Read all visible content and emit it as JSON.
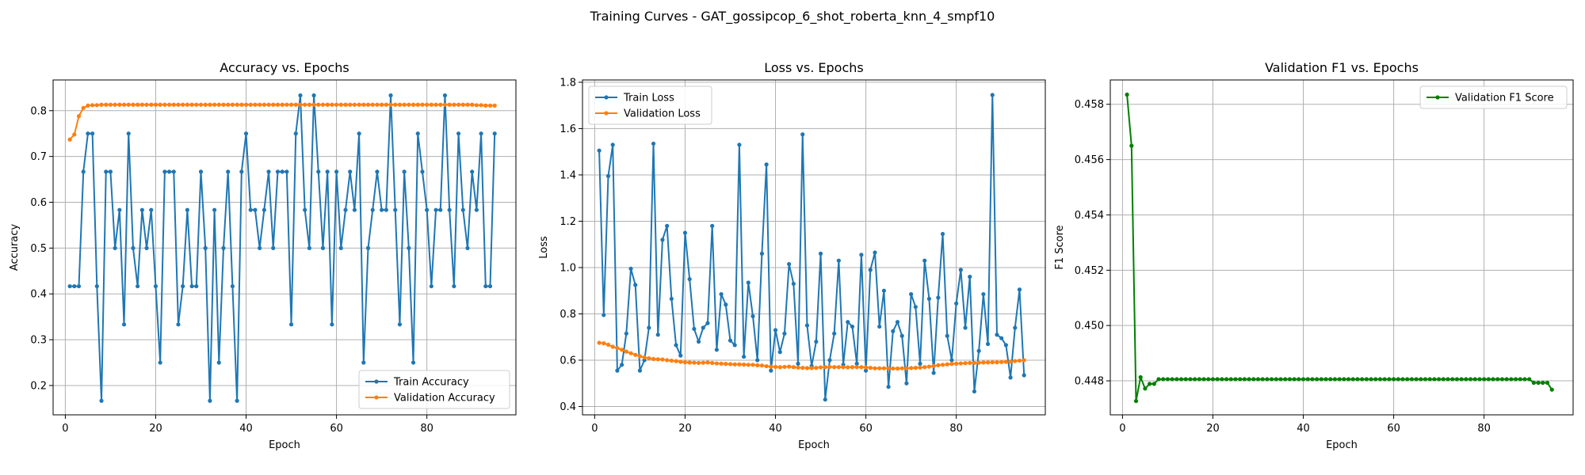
{
  "suptitle": "Training Curves - GAT_gossipcop_6_shot_roberta_knn_4_smpf10",
  "colors": {
    "blue": "#1f77b4",
    "orange": "#ff7f0e",
    "green": "#008000",
    "grid": "#b0b0b0"
  },
  "chart_data": [
    {
      "type": "line",
      "title": "Accuracy vs. Epochs",
      "xlabel": "Epoch",
      "ylabel": "Accuracy",
      "xlim": [
        -2.7,
        99.7
      ],
      "ylim": [
        0.136,
        0.867
      ],
      "xticks": [
        0,
        20,
        40,
        60,
        80
      ],
      "yticks": [
        0.2,
        0.3,
        0.4,
        0.5,
        0.6,
        0.7,
        0.8
      ],
      "grid": true,
      "legend": "lower right",
      "series": [
        {
          "name": "Train Accuracy",
          "color": "#1f77b4",
          "values": [
            0.4167,
            0.4167,
            0.4167,
            0.6667,
            0.75,
            0.75,
            0.4167,
            0.1667,
            0.6667,
            0.6667,
            0.5,
            0.5833,
            0.3333,
            0.75,
            0.5,
            0.4167,
            0.5833,
            0.5,
            0.5833,
            0.4167,
            0.25,
            0.6667,
            0.6667,
            0.6667,
            0.3333,
            0.4167,
            0.5833,
            0.4167,
            0.4167,
            0.6667,
            0.5,
            0.1667,
            0.5833,
            0.25,
            0.5,
            0.6667,
            0.4167,
            0.1667,
            0.6667,
            0.75,
            0.5833,
            0.5833,
            0.5,
            0.5833,
            0.6667,
            0.5,
            0.6667,
            0.6667,
            0.6667,
            0.3333,
            0.75,
            0.8333,
            0.5833,
            0.5,
            0.8333,
            0.6667,
            0.5,
            0.6667,
            0.3333,
            0.6667,
            0.5,
            0.5833,
            0.6667,
            0.5833,
            0.75,
            0.25,
            0.5,
            0.5833,
            0.6667,
            0.5833,
            0.5833,
            0.8333,
            0.5833,
            0.3333,
            0.6667,
            0.5,
            0.25,
            0.75,
            0.6667,
            0.5833,
            0.4167,
            0.5833,
            0.5833,
            0.8333,
            0.5833,
            0.4167,
            0.75,
            0.5833,
            0.5,
            0.6667,
            0.5833,
            0.75,
            0.4167,
            0.4167,
            0.75
          ]
        },
        {
          "name": "Validation Accuracy",
          "color": "#ff7f0e",
          "values": [
            0.737,
            0.748,
            0.788,
            0.806,
            0.811,
            0.812,
            0.812,
            0.813,
            0.813,
            0.813,
            0.813,
            0.813,
            0.813,
            0.813,
            0.813,
            0.813,
            0.813,
            0.813,
            0.813,
            0.813,
            0.813,
            0.813,
            0.813,
            0.813,
            0.813,
            0.813,
            0.813,
            0.813,
            0.813,
            0.813,
            0.813,
            0.813,
            0.813,
            0.813,
            0.813,
            0.813,
            0.813,
            0.813,
            0.813,
            0.813,
            0.813,
            0.813,
            0.813,
            0.813,
            0.813,
            0.813,
            0.813,
            0.813,
            0.813,
            0.813,
            0.813,
            0.813,
            0.813,
            0.813,
            0.813,
            0.813,
            0.813,
            0.813,
            0.813,
            0.813,
            0.813,
            0.813,
            0.813,
            0.813,
            0.813,
            0.813,
            0.813,
            0.813,
            0.813,
            0.813,
            0.813,
            0.813,
            0.813,
            0.813,
            0.813,
            0.813,
            0.813,
            0.813,
            0.813,
            0.813,
            0.813,
            0.813,
            0.813,
            0.813,
            0.813,
            0.813,
            0.813,
            0.813,
            0.813,
            0.813,
            0.812,
            0.812,
            0.811,
            0.811,
            0.811
          ]
        }
      ]
    },
    {
      "type": "line",
      "title": "Loss vs. Epochs",
      "xlabel": "Epoch",
      "ylabel": "Loss",
      "xlim": [
        -2.7,
        99.7
      ],
      "ylim": [
        0.364,
        1.81
      ],
      "xticks": [
        0,
        20,
        40,
        60,
        80
      ],
      "yticks": [
        0.4,
        0.6,
        0.8,
        1.0,
        1.2,
        1.4,
        1.6,
        1.8
      ],
      "grid": true,
      "legend": "upper left",
      "series": [
        {
          "name": "Train Loss",
          "color": "#1f77b4",
          "values": [
            1.505,
            0.795,
            1.395,
            1.53,
            0.555,
            0.58,
            0.715,
            0.995,
            0.925,
            0.555,
            0.6,
            0.74,
            1.535,
            0.71,
            1.12,
            1.18,
            0.865,
            0.665,
            0.62,
            1.15,
            0.95,
            0.735,
            0.68,
            0.74,
            0.76,
            1.18,
            0.645,
            0.885,
            0.84,
            0.685,
            0.665,
            1.53,
            0.615,
            0.935,
            0.79,
            0.6,
            1.06,
            1.445,
            0.555,
            0.73,
            0.635,
            0.715,
            1.015,
            0.93,
            0.585,
            1.575,
            0.75,
            0.575,
            0.68,
            1.06,
            0.43,
            0.6,
            0.715,
            1.03,
            0.58,
            0.765,
            0.745,
            0.585,
            1.055,
            0.555,
            0.99,
            1.065,
            0.745,
            0.9,
            0.485,
            0.725,
            0.765,
            0.705,
            0.5,
            0.885,
            0.83,
            0.585,
            1.03,
            0.865,
            0.545,
            0.87,
            1.145,
            0.705,
            0.6,
            0.845,
            0.99,
            0.74,
            0.96,
            0.465,
            0.64,
            0.885,
            0.67,
            1.745,
            0.71,
            0.695,
            0.665,
            0.525,
            0.74,
            0.905,
            0.535
          ]
        },
        {
          "name": "Validation Loss",
          "color": "#ff7f0e",
          "values": [
            0.675,
            0.673,
            0.667,
            0.658,
            0.652,
            0.645,
            0.637,
            0.63,
            0.623,
            0.617,
            0.612,
            0.608,
            0.605,
            0.604,
            0.603,
            0.6,
            0.598,
            0.596,
            0.593,
            0.591,
            0.59,
            0.589,
            0.588,
            0.589,
            0.59,
            0.588,
            0.586,
            0.585,
            0.584,
            0.583,
            0.582,
            0.582,
            0.581,
            0.58,
            0.58,
            0.578,
            0.577,
            0.574,
            0.572,
            0.571,
            0.57,
            0.571,
            0.572,
            0.57,
            0.568,
            0.567,
            0.566,
            0.566,
            0.567,
            0.569,
            0.57,
            0.571,
            0.57,
            0.57,
            0.57,
            0.569,
            0.57,
            0.57,
            0.57,
            0.569,
            0.567,
            0.565,
            0.565,
            0.565,
            0.565,
            0.564,
            0.564,
            0.565,
            0.565,
            0.566,
            0.567,
            0.568,
            0.57,
            0.572,
            0.575,
            0.578,
            0.58,
            0.582,
            0.584,
            0.585,
            0.586,
            0.587,
            0.588,
            0.588,
            0.589,
            0.59,
            0.59,
            0.591,
            0.591,
            0.592,
            0.593,
            0.594,
            0.596,
            0.598,
            0.6
          ]
        }
      ]
    },
    {
      "type": "line",
      "title": "Validation F1 vs. Epochs",
      "xlabel": "Epoch",
      "ylabel": "F1 Score",
      "xlim": [
        -2.7,
        99.7
      ],
      "ylim": [
        0.44677,
        0.45888
      ],
      "xticks": [
        0,
        20,
        40,
        60,
        80
      ],
      "yticks": [
        0.448,
        0.45,
        0.452,
        0.454,
        0.456,
        0.458
      ],
      "yformat": 3,
      "grid": true,
      "legend": "upper right",
      "series": [
        {
          "name": "Validation F1 Score",
          "color": "#008000",
          "values": [
            0.45835,
            0.4565,
            0.44727,
            0.44813,
            0.44772,
            0.44789,
            0.44789,
            0.44806,
            0.44806,
            0.44806,
            0.44806,
            0.44806,
            0.44806,
            0.44806,
            0.44806,
            0.44806,
            0.44806,
            0.44806,
            0.44806,
            0.44806,
            0.44806,
            0.44806,
            0.44806,
            0.44806,
            0.44806,
            0.44806,
            0.44806,
            0.44806,
            0.44806,
            0.44806,
            0.44806,
            0.44806,
            0.44806,
            0.44806,
            0.44806,
            0.44806,
            0.44806,
            0.44806,
            0.44806,
            0.44806,
            0.44806,
            0.44806,
            0.44806,
            0.44806,
            0.44806,
            0.44806,
            0.44806,
            0.44806,
            0.44806,
            0.44806,
            0.44806,
            0.44806,
            0.44806,
            0.44806,
            0.44806,
            0.44806,
            0.44806,
            0.44806,
            0.44806,
            0.44806,
            0.44806,
            0.44806,
            0.44806,
            0.44806,
            0.44806,
            0.44806,
            0.44806,
            0.44806,
            0.44806,
            0.44806,
            0.44806,
            0.44806,
            0.44806,
            0.44806,
            0.44806,
            0.44806,
            0.44806,
            0.44806,
            0.44806,
            0.44806,
            0.44806,
            0.44806,
            0.44806,
            0.44806,
            0.44806,
            0.44806,
            0.44806,
            0.44806,
            0.44806,
            0.44806,
            0.44793,
            0.44793,
            0.44793,
            0.44793,
            0.44768
          ]
        }
      ]
    }
  ]
}
